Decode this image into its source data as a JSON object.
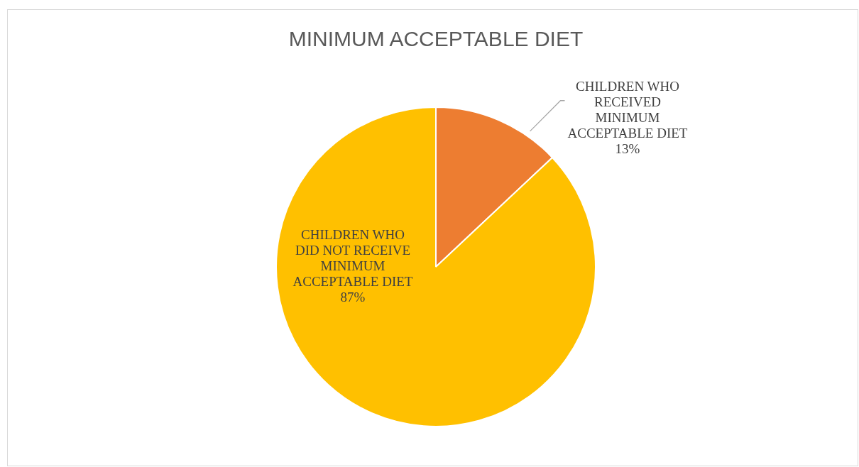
{
  "chart_data": {
    "type": "pie",
    "title": "MINIMUM ACCEPTABLE DIET",
    "categories": [
      "CHILDREN WHO RECEIVED MINIMUM ACCEPTABLE DIET",
      "CHILDREN WHO DID NOT RECEIVE MINIMUM ACCEPTABLE DIET"
    ],
    "values": [
      13,
      87
    ],
    "colors": [
      "#ed7d31",
      "#ffc000"
    ],
    "value_labels": [
      "13%",
      "87%"
    ],
    "legend": false
  }
}
